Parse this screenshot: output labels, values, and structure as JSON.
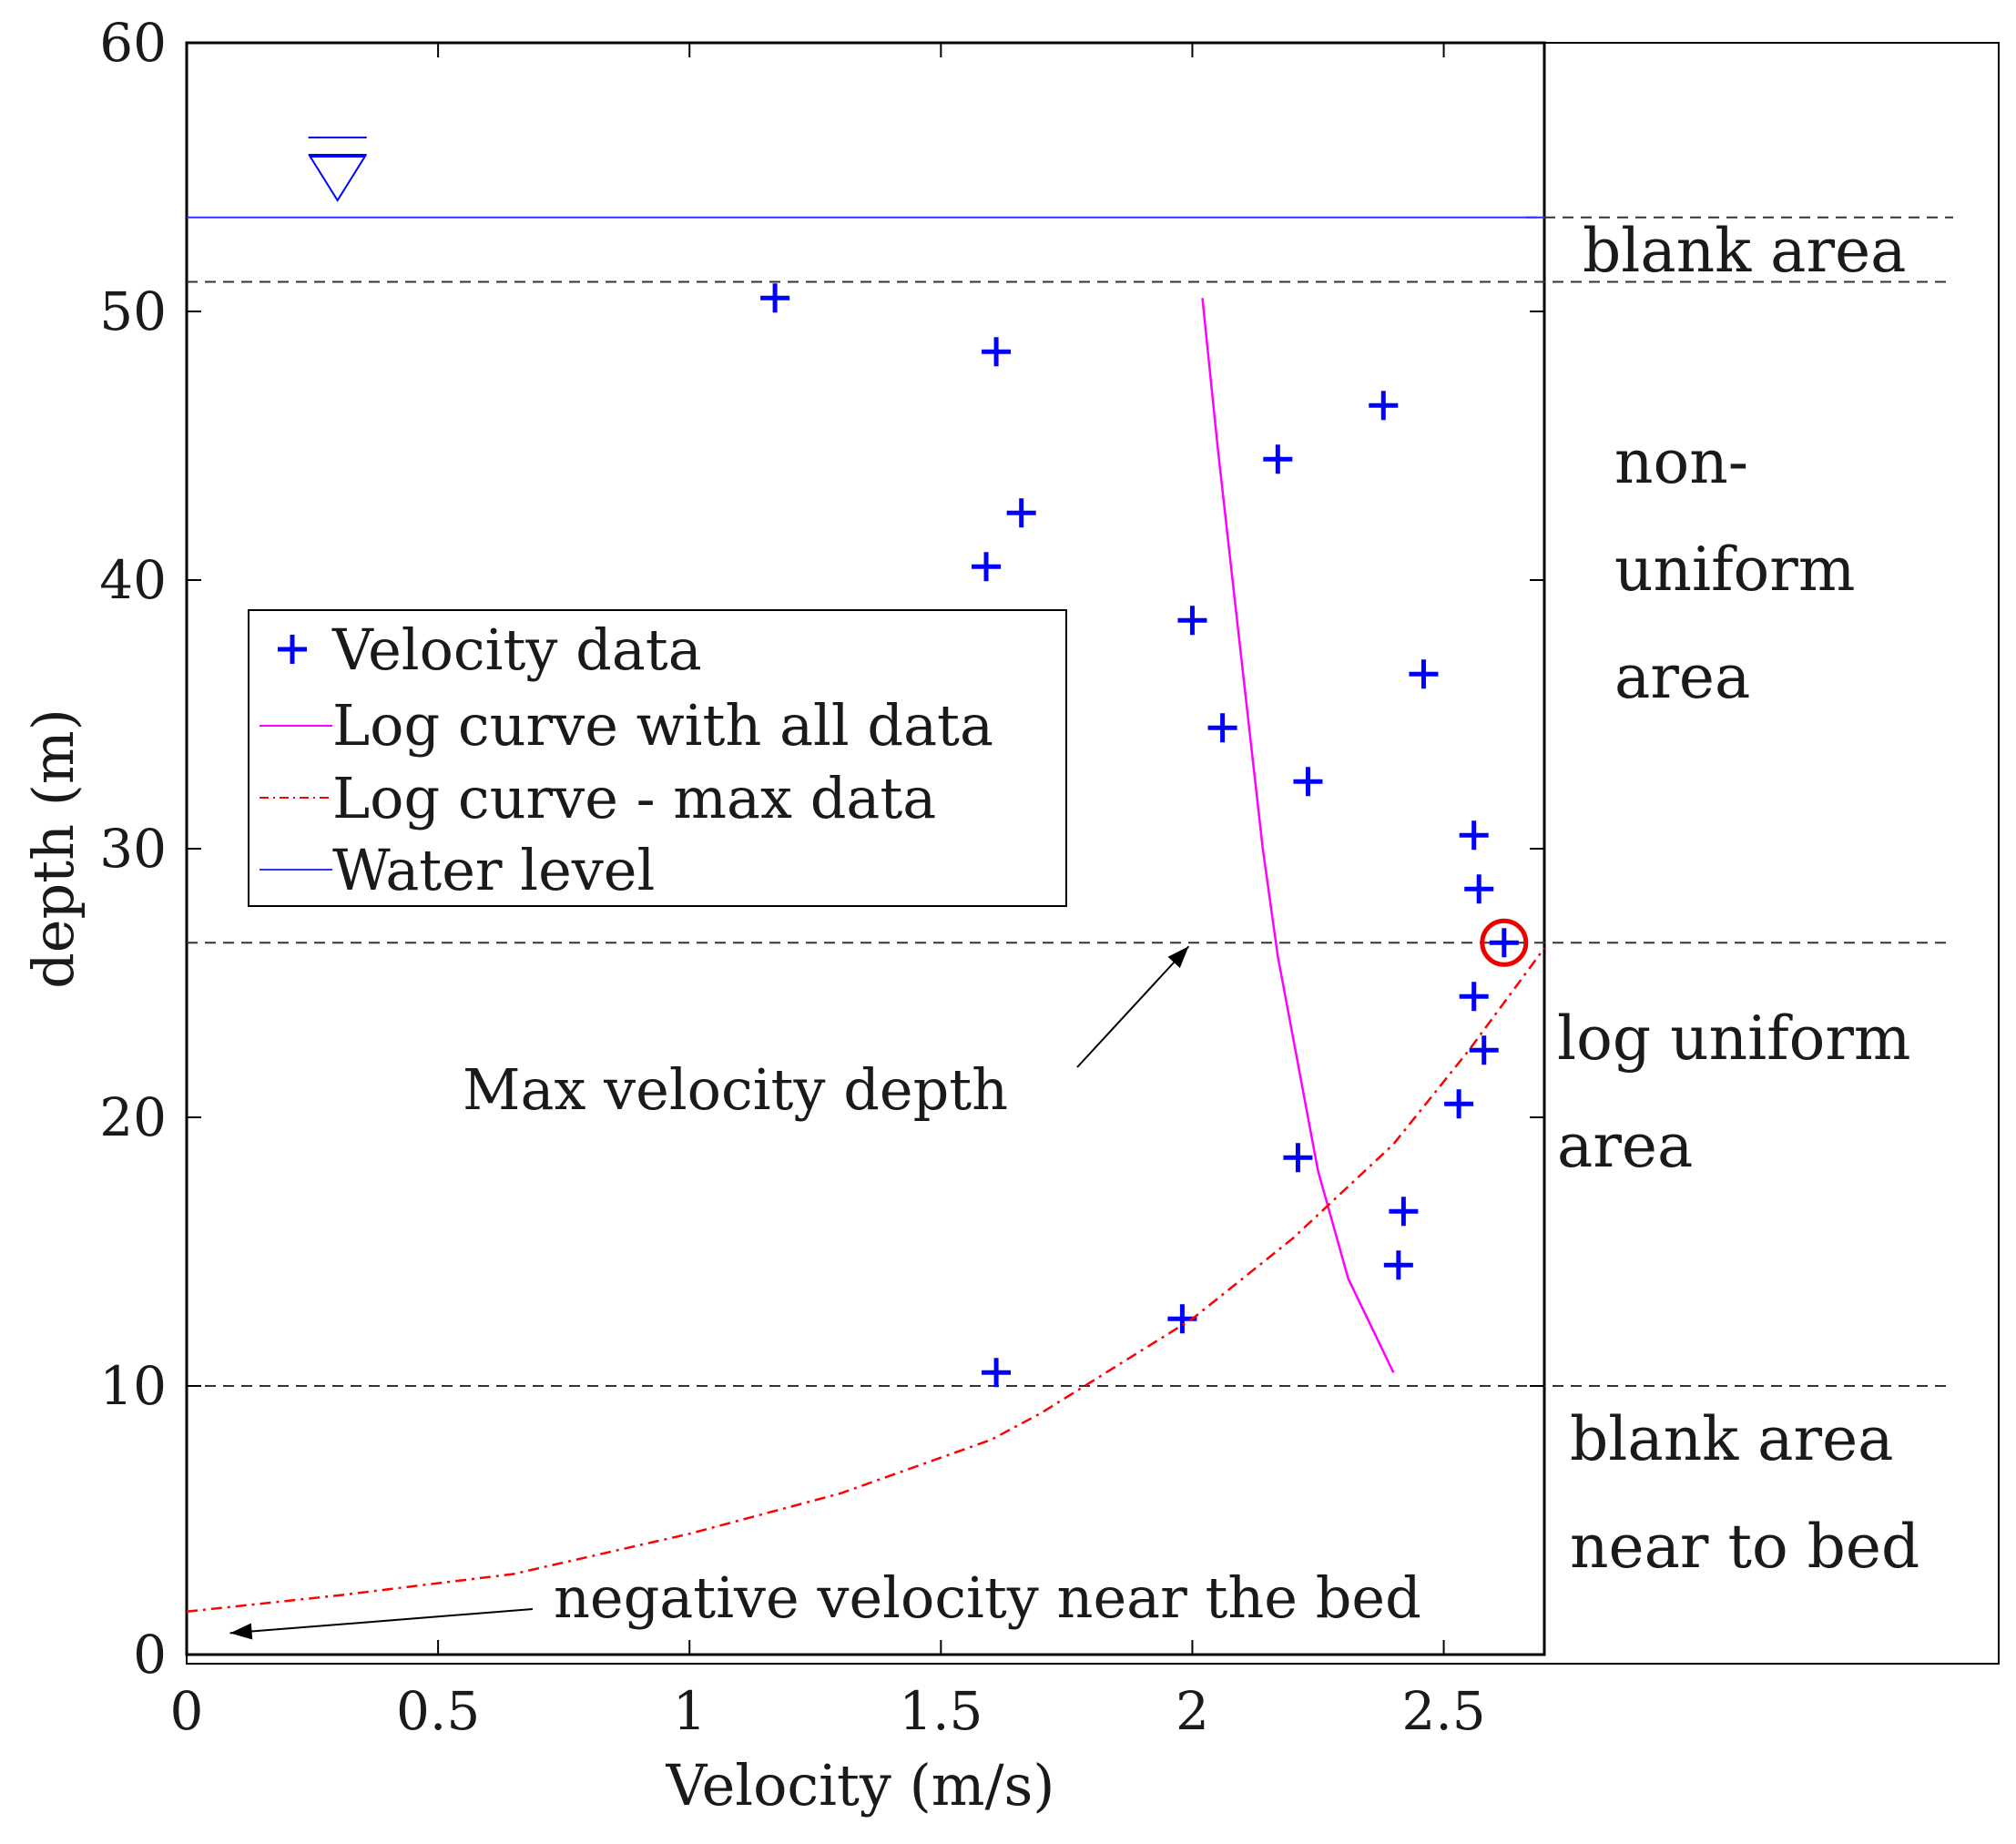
{
  "chart_data": {
    "type": "scatter",
    "title": "",
    "xlabel": "Velocity (m/s)",
    "ylabel": "depth (m)",
    "xlim": [
      0,
      2.7
    ],
    "ylim": [
      0,
      60
    ],
    "xticks": [
      0,
      0.5,
      1,
      1.5,
      2,
      2.5
    ],
    "xtick_labels": [
      "0",
      "0.5",
      "1",
      "1.5",
      "2",
      "2.5"
    ],
    "yticks": [
      0,
      10,
      20,
      30,
      40,
      50,
      60
    ],
    "ytick_labels": [
      "0",
      "10",
      "20",
      "30",
      "40",
      "50",
      "60"
    ],
    "grid": false,
    "legend_position": "center-left",
    "legend": [
      {
        "label": "Velocity data",
        "style": "plus-marker",
        "color": "#0000ff"
      },
      {
        "label": "Log curve with all data",
        "style": "solid",
        "color": "#ff00ff"
      },
      {
        "label": "Log curve - max data",
        "style": "dash-dot",
        "color": "#ff0000"
      },
      {
        "label": "Water level",
        "style": "solid",
        "color": "#3333ff"
      }
    ],
    "series": [
      {
        "name": "Velocity data",
        "kind": "scatter",
        "color": "#0000ff",
        "points": [
          [
            1.17,
            50.5
          ],
          [
            1.61,
            48.5
          ],
          [
            2.38,
            46.5
          ],
          [
            2.17,
            44.5
          ],
          [
            1.66,
            42.5
          ],
          [
            1.59,
            40.5
          ],
          [
            2.0,
            38.5
          ],
          [
            2.46,
            36.5
          ],
          [
            2.06,
            34.5
          ],
          [
            2.23,
            32.5
          ],
          [
            2.56,
            30.5
          ],
          [
            2.57,
            28.5
          ],
          [
            2.62,
            26.5
          ],
          [
            2.56,
            24.5
          ],
          [
            2.58,
            22.5
          ],
          [
            2.53,
            20.5
          ],
          [
            2.21,
            18.5
          ],
          [
            2.42,
            16.5
          ],
          [
            2.41,
            14.5
          ],
          [
            1.98,
            12.5
          ],
          [
            1.61,
            10.5
          ]
        ]
      },
      {
        "name": "Log curve with all data",
        "kind": "line",
        "color": "#ff00ff",
        "points": [
          [
            2.02,
            50.5
          ],
          [
            2.05,
            45
          ],
          [
            2.08,
            40
          ],
          [
            2.11,
            35
          ],
          [
            2.14,
            30
          ],
          [
            2.17,
            26
          ],
          [
            2.21,
            22
          ],
          [
            2.25,
            18
          ],
          [
            2.31,
            14
          ],
          [
            2.4,
            10.5
          ]
        ]
      },
      {
        "name": "Log curve - max data",
        "kind": "line",
        "color": "#ff0000",
        "points": [
          [
            0.0,
            1.6
          ],
          [
            0.3,
            2.2
          ],
          [
            0.65,
            3.0
          ],
          [
            1.0,
            4.5
          ],
          [
            1.3,
            6.0
          ],
          [
            1.6,
            8.0
          ],
          [
            1.7,
            9.0
          ],
          [
            2.0,
            12.5
          ],
          [
            2.2,
            15.5
          ],
          [
            2.4,
            19.0
          ],
          [
            2.55,
            22.5
          ],
          [
            2.7,
            26.3
          ]
        ]
      },
      {
        "name": "Water level",
        "kind": "hline",
        "color": "#3333ff",
        "y": 53.5
      }
    ],
    "reference_lines": [
      {
        "name": "water-level-dashed",
        "y": 53.5
      },
      {
        "name": "blank-area-top",
        "y": 51.1
      },
      {
        "name": "max-velocity-depth",
        "y": 26.5
      },
      {
        "name": "bed-blank-area-top",
        "y": 10
      }
    ],
    "highlight_point": [
      2.62,
      26.5
    ],
    "water_symbol_x": 0.3,
    "annotations": {
      "max_velocity": {
        "text": "Max velocity depth",
        "arrow_to": [
          2.0,
          26.5
        ]
      },
      "negative_velocity": {
        "text": "negative velocity near the bed",
        "arrow_to": [
          0.05,
          0.8
        ]
      }
    },
    "regions": [
      {
        "name": "blank-area",
        "lines": [
          "blank area"
        ]
      },
      {
        "name": "non-uniform-area",
        "lines": [
          "non-",
          "uniform",
          "area"
        ]
      },
      {
        "name": "log-uniform-area",
        "lines": [
          "log uniform",
          "area"
        ]
      },
      {
        "name": "bed-blank-area",
        "lines": [
          "blank area",
          "near to bed"
        ]
      }
    ]
  }
}
